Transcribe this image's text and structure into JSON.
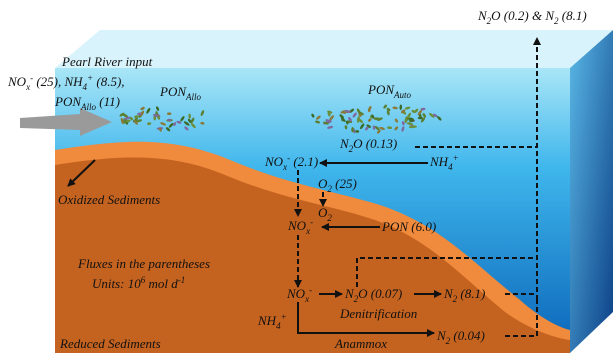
{
  "labels": [
    [
      "N",
      {
        "sub": "2"
      },
      "O (0.2) & N",
      {
        "sub": "2"
      },
      " (8.1)"
    ],
    [
      "Pearl River input"
    ],
    [
      "NO",
      {
        "sub": "x"
      },
      {
        "sup": "-"
      },
      " (25), NH",
      {
        "sub": "4"
      },
      {
        "sup": "+"
      },
      " (8.5),"
    ],
    [
      "PON",
      {
        "sub": "Allo"
      },
      " (11)"
    ],
    [
      "PON",
      {
        "sub": "Allo"
      }
    ],
    [
      "PON",
      {
        "sub": "Auto"
      }
    ],
    [
      "N",
      {
        "sub": "2"
      },
      "O (0.13)"
    ],
    [
      "NH",
      {
        "sub": "4"
      },
      {
        "sup": "+"
      }
    ],
    [
      "NO",
      {
        "sub": "x"
      },
      {
        "sup": "-"
      },
      " (2.1)"
    ],
    [
      "O",
      {
        "sub": "2"
      },
      " (25)"
    ],
    [
      "O",
      {
        "sub": "2"
      }
    ],
    [
      "NO",
      {
        "sub": "x"
      },
      {
        "sup": "-"
      }
    ],
    [
      "PON (6.0)"
    ],
    [
      "Oxidized Sediments"
    ],
    [
      "Fluxes in the parentheses"
    ],
    [
      "Units: 10",
      {
        "sup": "6"
      },
      " mol d",
      {
        "sup": "-1"
      }
    ],
    [
      "NO",
      {
        "sub": "x"
      },
      {
        "sup": "-"
      }
    ],
    [
      "N",
      {
        "sub": "2"
      },
      "O (0.07)"
    ],
    [
      "N",
      {
        "sub": "2"
      },
      " (8.1)"
    ],
    [
      "Denitrification"
    ],
    [
      "NH",
      {
        "sub": "4"
      },
      {
        "sup": "+"
      }
    ],
    [
      "N",
      {
        "sub": "2"
      },
      " (0.04)"
    ],
    [
      "Anammox"
    ],
    [
      "Reduced Sediments"
    ]
  ]
}
